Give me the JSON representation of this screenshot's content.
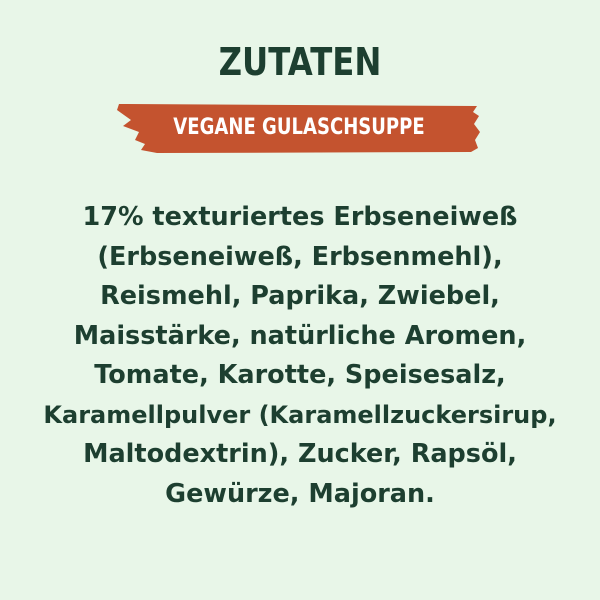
{
  "title": "ZUTATEN",
  "subtitle": "VEGANE GULASCHSUPPE",
  "colors": {
    "background": "#e8f6e8",
    "text": "#1d3f30",
    "banner": "#c4532f"
  },
  "ingredients_lines": [
    "17% texturiertes Erbseneiweß",
    "(Erbseneiweß, Erbsenmehl),",
    "Reismehl, Paprika, Zwiebel,",
    "Maisstärke, natürliche Aromen,",
    "Tomate, Karotte, Speisesalz,",
    "Karamellpulver (Karamellzuckersirup,",
    "Maltodextrin), Zucker, Rapsöl,",
    "Gewürze, Majoran."
  ]
}
